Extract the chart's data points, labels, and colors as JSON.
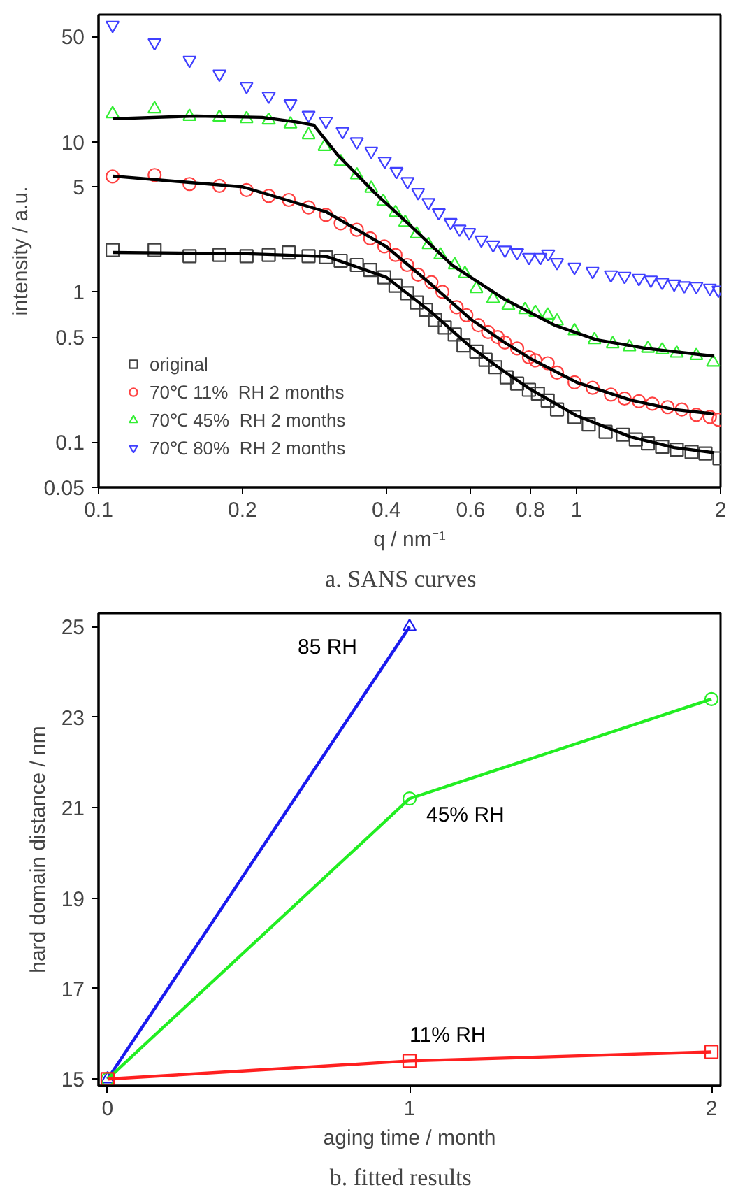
{
  "chart_data": [
    {
      "type": "scatter",
      "xlabel": "q / nm⁻¹",
      "ylabel": "intensity / a.u.",
      "log": "xy",
      "xlim": [
        0.1,
        2
      ],
      "ylim": [
        0.05,
        70
      ],
      "xticks": [
        0.1,
        0.2,
        0.4,
        0.6,
        0.8,
        1,
        2
      ],
      "yticks": [
        0.05,
        0.1,
        0.5,
        1,
        5,
        10,
        50
      ],
      "grid": false,
      "legend": "bottom left",
      "annotations": [
        "a.    SANS curves"
      ],
      "series": [
        {
          "name": "original",
          "color": "#404040",
          "marker": "square",
          "x": [
            0.107,
            0.131,
            0.155,
            0.179,
            0.204,
            0.227,
            0.25,
            0.275,
            0.299,
            0.321,
            0.347,
            0.37,
            0.396,
            0.418,
            0.442,
            0.463,
            0.484,
            0.506,
            0.53,
            0.556,
            0.58,
            0.617,
            0.645,
            0.676,
            0.714,
            0.751,
            0.795,
            0.83,
            0.87,
            0.91,
            0.99,
            1.06,
            1.15,
            1.25,
            1.33,
            1.41,
            1.51,
            1.62,
            1.74,
            1.86,
            1.99
          ],
          "values": [
            1.9,
            1.9,
            1.73,
            1.76,
            1.73,
            1.76,
            1.83,
            1.73,
            1.7,
            1.61,
            1.51,
            1.4,
            1.25,
            1.1,
            0.98,
            0.85,
            0.76,
            0.65,
            0.58,
            0.52,
            0.44,
            0.4,
            0.353,
            0.315,
            0.27,
            0.245,
            0.223,
            0.21,
            0.189,
            0.165,
            0.147,
            0.131,
            0.117,
            0.112,
            0.104,
            0.098,
            0.093,
            0.089,
            0.086,
            0.084,
            0.078
          ]
        },
        {
          "name": "70℃ 11%  RH 2 months",
          "color": "#ff4040",
          "marker": "circle",
          "x": [
            0.107,
            0.131,
            0.155,
            0.179,
            0.204,
            0.227,
            0.25,
            0.275,
            0.299,
            0.321,
            0.347,
            0.37,
            0.396,
            0.418,
            0.442,
            0.466,
            0.497,
            0.524,
            0.561,
            0.588,
            0.623,
            0.653,
            0.684,
            0.708,
            0.751,
            0.795,
            0.82,
            0.87,
            0.91,
            0.99,
            1.08,
            1.18,
            1.26,
            1.35,
            1.44,
            1.55,
            1.66,
            1.78,
            1.9,
            1.98
          ],
          "values": [
            5.86,
            6.0,
            5.22,
            5.07,
            4.76,
            4.35,
            4.09,
            3.65,
            3.25,
            2.86,
            2.59,
            2.27,
            2.01,
            1.76,
            1.51,
            1.3,
            1.16,
            1.0,
            0.79,
            0.7,
            0.6,
            0.54,
            0.5,
            0.46,
            0.42,
            0.367,
            0.35,
            0.335,
            0.29,
            0.25,
            0.23,
            0.207,
            0.195,
            0.187,
            0.18,
            0.171,
            0.165,
            0.152,
            0.147,
            0.141
          ]
        },
        {
          "name": "70℃ 45%  RH 2 months",
          "color": "#33ee33",
          "marker": "triangle",
          "x": [
            0.107,
            0.131,
            0.155,
            0.179,
            0.204,
            0.227,
            0.252,
            0.275,
            0.297,
            0.321,
            0.347,
            0.372,
            0.394,
            0.418,
            0.438,
            0.463,
            0.49,
            0.519,
            0.556,
            0.584,
            0.617,
            0.669,
            0.72,
            0.78,
            0.82,
            0.87,
            0.91,
            0.99,
            1.09,
            1.19,
            1.29,
            1.41,
            1.51,
            1.62,
            1.78,
            1.93
          ],
          "values": [
            15.3,
            16.5,
            14.7,
            14.5,
            14.2,
            13.9,
            13.1,
            11.1,
            9.27,
            7.36,
            6.0,
            4.88,
            4.0,
            3.37,
            2.9,
            2.43,
            2.06,
            1.76,
            1.51,
            1.32,
            1.05,
            0.9,
            0.81,
            0.76,
            0.73,
            0.7,
            0.64,
            0.55,
            0.48,
            0.45,
            0.43,
            0.42,
            0.41,
            0.39,
            0.376,
            0.34
          ]
        },
        {
          "name": "70℃ 80%  RH 2 months",
          "color": "#4040ff",
          "marker": "triangle_down",
          "x": [
            0.107,
            0.131,
            0.155,
            0.179,
            0.204,
            0.227,
            0.252,
            0.275,
            0.299,
            0.324,
            0.347,
            0.372,
            0.397,
            0.42,
            0.443,
            0.466,
            0.49,
            0.515,
            0.545,
            0.569,
            0.596,
            0.632,
            0.669,
            0.708,
            0.751,
            0.795,
            0.84,
            0.872,
            0.91,
            0.99,
            1.08,
            1.18,
            1.26,
            1.35,
            1.43,
            1.51,
            1.6,
            1.68,
            1.78,
            1.9,
            1.98
          ],
          "values": [
            59.6,
            45.6,
            34.9,
            28.2,
            23.4,
            20.1,
            17.9,
            15.0,
            13.7,
            11.7,
            10.0,
            8.65,
            7.43,
            6.34,
            5.43,
            4.59,
            3.94,
            3.37,
            2.9,
            2.62,
            2.49,
            2.22,
            2.06,
            1.9,
            1.83,
            1.7,
            1.7,
            1.79,
            1.57,
            1.46,
            1.37,
            1.3,
            1.27,
            1.23,
            1.2,
            1.16,
            1.13,
            1.1,
            1.09,
            1.06,
            1.03
          ]
        },
        {
          "type": "line",
          "color": "#000000",
          "marker": "none",
          "x": [
            0.107,
            0.2,
            0.3,
            0.4,
            0.5,
            0.6,
            0.7,
            0.8,
            1,
            1.3,
            1.6,
            1.94
          ],
          "values": [
            1.83,
            1.8,
            1.72,
            1.25,
            0.72,
            0.43,
            0.3,
            0.225,
            0.15,
            0.108,
            0.092,
            0.085
          ]
        },
        {
          "type": "line",
          "color": "#000000",
          "marker": "none",
          "x": [
            0.107,
            0.2,
            0.3,
            0.4,
            0.5,
            0.6,
            0.7,
            0.8,
            1,
            1.3,
            1.6,
            1.94
          ],
          "values": [
            5.9,
            5.0,
            3.4,
            2.0,
            1.1,
            0.66,
            0.47,
            0.36,
            0.25,
            0.19,
            0.165,
            0.154
          ]
        },
        {
          "type": "line",
          "color": "#000000",
          "marker": "none",
          "x": [
            0.107,
            0.16,
            0.22,
            0.26,
            0.282,
            0.316,
            0.38,
            0.447,
            0.55,
            0.708,
            0.9,
            1.1,
            1.4,
            1.94
          ],
          "values": [
            14.2,
            14.8,
            14.5,
            13.5,
            12.9,
            8.2,
            4.5,
            2.8,
            1.5,
            0.89,
            0.6,
            0.48,
            0.42,
            0.373
          ]
        }
      ]
    },
    {
      "type": "line",
      "xlabel": "aging time / month",
      "ylabel": "hard domain distance / nm",
      "xlim": [
        -0.03,
        2.03
      ],
      "ylim": [
        14.85,
        25.3
      ],
      "xticks": [
        0,
        1,
        2
      ],
      "yticks": [
        15,
        17,
        19,
        21,
        23,
        25
      ],
      "grid": false,
      "legend": false,
      "annotations": [
        "b.    fitted results"
      ],
      "series": [
        {
          "name": "85 RH",
          "color": "#1a1aee",
          "marker": "triangle",
          "x": [
            0,
            1
          ],
          "values": [
            15.0,
            25.0
          ]
        },
        {
          "name": "45% RH",
          "color": "#22ee22",
          "marker": "circle",
          "x": [
            0,
            1,
            2
          ],
          "values": [
            15.0,
            21.2,
            23.4
          ]
        },
        {
          "name": "11% RH",
          "color": "#ff2020",
          "marker": "square",
          "x": [
            0,
            1,
            2
          ],
          "values": [
            15.0,
            15.4,
            15.6
          ]
        }
      ]
    }
  ]
}
